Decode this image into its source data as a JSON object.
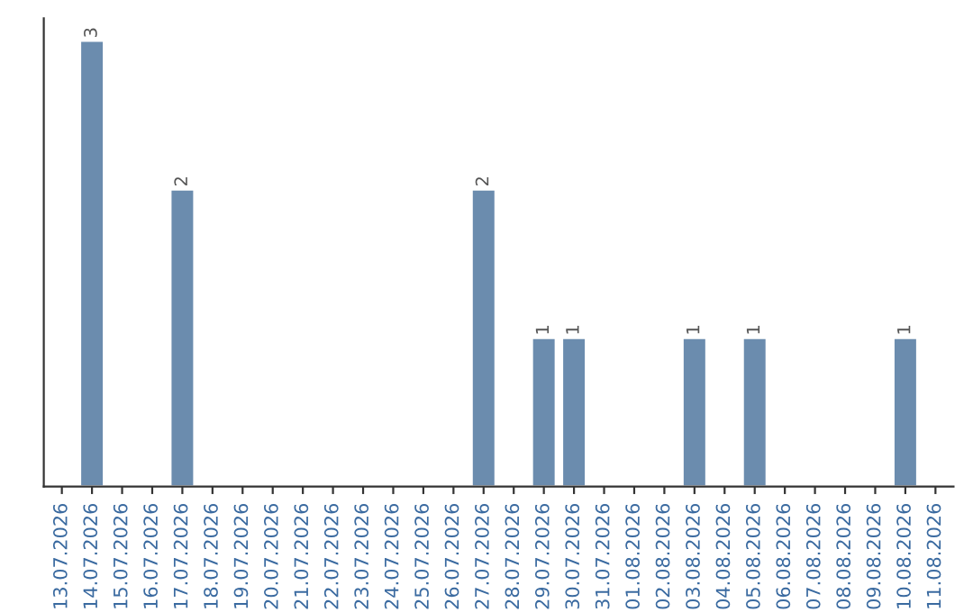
{
  "chart_data": {
    "type": "bar",
    "categories": [
      "13.07.2026",
      "14.07.2026",
      "15.07.2026",
      "16.07.2026",
      "17.07.2026",
      "18.07.2026",
      "19.07.2026",
      "20.07.2026",
      "21.07.2026",
      "22.07.2026",
      "23.07.2026",
      "24.07.2026",
      "25.07.2026",
      "26.07.2026",
      "27.07.2026",
      "28.07.2026",
      "29.07.2026",
      "30.07.2026",
      "31.07.2026",
      "01.08.2026",
      "02.08.2026",
      "03.08.2026",
      "04.08.2026",
      "05.08.2026",
      "06.08.2026",
      "07.08.2026",
      "08.08.2026",
      "09.08.2026",
      "10.08.2026",
      "11.08.2026"
    ],
    "values": [
      null,
      3,
      null,
      null,
      2,
      null,
      null,
      null,
      null,
      null,
      null,
      null,
      null,
      null,
      2,
      null,
      1,
      1,
      null,
      null,
      null,
      1,
      null,
      1,
      null,
      null,
      null,
      null,
      1,
      null
    ],
    "value_labels": [
      null,
      "3",
      null,
      null,
      "2",
      null,
      null,
      null,
      null,
      null,
      null,
      null,
      null,
      null,
      "2",
      null,
      "1",
      "1",
      null,
      null,
      null,
      "1",
      null,
      "1",
      null,
      null,
      null,
      null,
      "1",
      null
    ],
    "color": "#6b8cae",
    "grid": false,
    "legend": false,
    "tick_labels": "x"
  }
}
